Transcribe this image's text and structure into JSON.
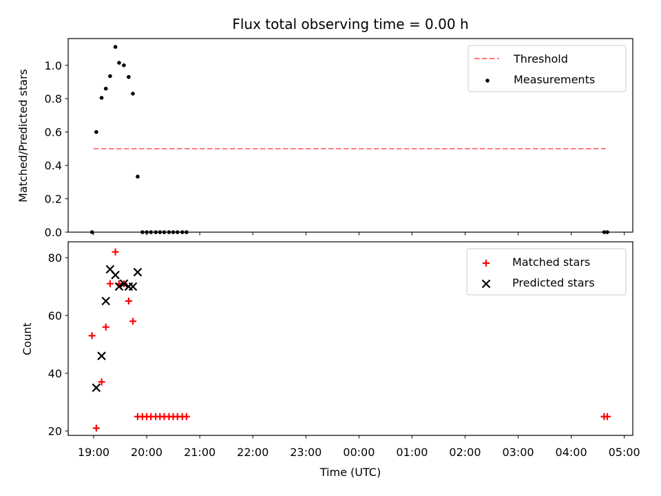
{
  "chart_data": [
    {
      "type": "scatter",
      "title": "Flux total observing time = 0.00 h",
      "ylabel": "Matched/Predicted stars",
      "ylim": [
        0.0,
        1.16
      ],
      "xlim_hours": [
        18.52,
        29.16
      ],
      "yticks": [
        0.0,
        0.2,
        0.4,
        0.6,
        0.8,
        1.0
      ],
      "ytick_labels": [
        "0.0",
        "0.2",
        "0.4",
        "0.6",
        "0.8",
        "1.0"
      ],
      "legend_position": "top-right",
      "threshold": {
        "name": "Threshold",
        "value": 0.5,
        "x_start": 19.0,
        "x_end": 28.65,
        "color": "#ff7777"
      },
      "series": [
        {
          "name": "Measurements",
          "color": "#000000",
          "marker": "dot",
          "points": [
            [
              18.97,
              0.0
            ],
            [
              19.05,
              0.6
            ],
            [
              19.15,
              0.805
            ],
            [
              19.23,
              0.86
            ],
            [
              19.31,
              0.935
            ],
            [
              19.41,
              1.11
            ],
            [
              19.48,
              1.015
            ],
            [
              19.57,
              1.0
            ],
            [
              19.66,
              0.93
            ],
            [
              19.74,
              0.83
            ],
            [
              19.83,
              0.333
            ],
            [
              19.92,
              0.0
            ],
            [
              20.0,
              0.0
            ],
            [
              20.08,
              0.0
            ],
            [
              20.17,
              0.0
            ],
            [
              20.25,
              0.0
            ],
            [
              20.33,
              0.0
            ],
            [
              20.42,
              0.0
            ],
            [
              20.5,
              0.0
            ],
            [
              20.58,
              0.0
            ],
            [
              20.67,
              0.0
            ],
            [
              20.75,
              0.0
            ],
            [
              28.62,
              0.0
            ],
            [
              28.68,
              0.0
            ]
          ]
        }
      ]
    },
    {
      "type": "scatter",
      "xlabel": "Time (UTC)",
      "ylabel": "Count",
      "ylim": [
        18.5,
        85.5
      ],
      "xlim_hours": [
        18.52,
        29.16
      ],
      "yticks": [
        20,
        40,
        60,
        80
      ],
      "ytick_labels": [
        "20",
        "40",
        "60",
        "80"
      ],
      "xticks_hours": [
        19,
        20,
        21,
        22,
        23,
        24,
        25,
        26,
        27,
        28,
        29
      ],
      "xtick_labels": [
        "19:00",
        "20:00",
        "21:00",
        "22:00",
        "23:00",
        "00:00",
        "01:00",
        "02:00",
        "03:00",
        "04:00",
        "05:00"
      ],
      "legend_position": "top-right",
      "series": [
        {
          "name": "Matched stars",
          "color": "#ff0000",
          "marker": "plus",
          "points": [
            [
              18.97,
              53
            ],
            [
              19.05,
              21
            ],
            [
              19.15,
              37
            ],
            [
              19.23,
              56
            ],
            [
              19.31,
              71
            ],
            [
              19.41,
              82
            ],
            [
              19.48,
              71
            ],
            [
              19.57,
              71
            ],
            [
              19.66,
              65
            ],
            [
              19.74,
              58
            ],
            [
              19.83,
              25
            ],
            [
              19.92,
              25
            ],
            [
              20.0,
              25
            ],
            [
              20.08,
              25
            ],
            [
              20.17,
              25
            ],
            [
              20.25,
              25
            ],
            [
              20.33,
              25
            ],
            [
              20.42,
              25
            ],
            [
              20.5,
              25
            ],
            [
              20.58,
              25
            ],
            [
              20.67,
              25
            ],
            [
              20.75,
              25
            ],
            [
              28.62,
              25
            ],
            [
              28.68,
              25
            ]
          ]
        },
        {
          "name": "Predicted stars",
          "color": "#000000",
          "marker": "x",
          "points": [
            [
              19.05,
              35
            ],
            [
              19.15,
              46
            ],
            [
              19.23,
              65
            ],
            [
              19.31,
              76
            ],
            [
              19.41,
              74
            ],
            [
              19.48,
              70
            ],
            [
              19.57,
              71
            ],
            [
              19.66,
              70
            ],
            [
              19.74,
              70
            ],
            [
              19.83,
              75
            ]
          ]
        }
      ]
    }
  ]
}
